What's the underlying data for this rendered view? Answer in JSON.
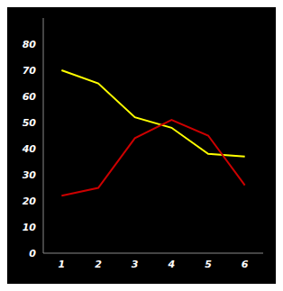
{
  "chart_data": {
    "type": "line",
    "x": [
      1,
      2,
      3,
      4,
      5,
      6
    ],
    "series": [
      {
        "color": "#ffff00",
        "values": [
          70,
          65,
          52,
          48,
          38,
          37
        ]
      },
      {
        "color": "#cc0000",
        "values": [
          22,
          25,
          44,
          51,
          45,
          26
        ]
      }
    ],
    "xlim": [
      0.5,
      6.5
    ],
    "ylim": [
      0,
      90
    ],
    "xticks": [
      1,
      2,
      3,
      4,
      5,
      6
    ],
    "yticks": [
      0,
      10,
      20,
      30,
      40,
      50,
      60,
      70,
      80
    ],
    "grid": false
  }
}
